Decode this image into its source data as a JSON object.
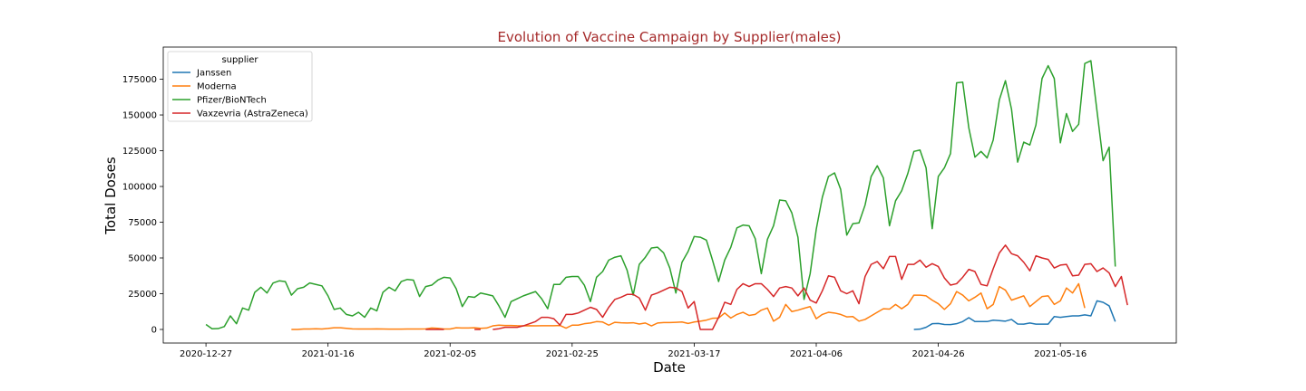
{
  "chart_data": {
    "type": "line",
    "title": "Evolution of Vaccine Campaign by Supplier(males)",
    "title_color": "#a52a2a",
    "xlabel": "Date",
    "ylabel": "Total Doses",
    "xlim": [
      "2020-12-20",
      "2021-06-04"
    ],
    "ylim": [
      -9500,
      197500
    ],
    "x_ticks": [
      "2020-12-27",
      "2021-01-16",
      "2021-02-05",
      "2021-02-25",
      "2021-03-17",
      "2021-04-06",
      "2021-04-26",
      "2021-05-16"
    ],
    "y_ticks": [
      0,
      25000,
      50000,
      75000,
      100000,
      125000,
      150000,
      175000
    ],
    "y_tick_labels": [
      "0",
      "25000",
      "50000",
      "75000",
      "100000",
      "125000",
      "150000",
      "175000"
    ],
    "legend_title": "supplier",
    "legend_position": "top-left",
    "grid": false,
    "series": [
      {
        "name": "Janssen",
        "color": "#1f77b4",
        "start": "2021-04-22",
        "values": [
          0,
          200,
          1500,
          4000,
          4200,
          3500,
          3400,
          4000,
          5500,
          8200,
          5500,
          5500,
          5500,
          6500,
          6200,
          5800,
          7000,
          3800,
          3700,
          4500,
          3700,
          3700,
          3700,
          9000,
          8500,
          9000,
          9500,
          9500,
          10200,
          9500,
          20000,
          19000,
          16500,
          5500
        ]
      },
      {
        "name": "Moderna",
        "color": "#ff7f0e",
        "start": "2021-01-10",
        "values": [
          0,
          0,
          300,
          300,
          500,
          300,
          700,
          1200,
          1200,
          800,
          400,
          300,
          300,
          300,
          400,
          300,
          200,
          200,
          200,
          300,
          300,
          300,
          400,
          1000,
          800,
          300,
          300,
          1200,
          1000,
          1000,
          1200,
          800,
          1000,
          2500,
          3000,
          2800,
          2800,
          2600,
          2500,
          2600,
          2500,
          2600,
          2600,
          2600,
          2800,
          900,
          3000,
          3000,
          4000,
          4500,
          5500,
          5200,
          3000,
          5000,
          4700,
          4500,
          4700,
          3800,
          4500,
          2500,
          4500,
          4800,
          4800,
          5000,
          5200,
          4200,
          5200,
          5800,
          6500,
          7800,
          8000,
          11500,
          8000,
          10500,
          12000,
          9800,
          10500,
          13500,
          15000,
          5800,
          8500,
          17500,
          12500,
          13500,
          14800,
          16000,
          7500,
          10500,
          12000,
          11500,
          10500,
          8800,
          9000,
          5800,
          7000,
          9500,
          12000,
          14500,
          14200,
          17500,
          14500,
          17500,
          24000,
          24000,
          23500,
          20500,
          18000,
          14000,
          18000,
          26500,
          24000,
          20000,
          22500,
          25500,
          14500,
          17500,
          30000,
          27500,
          20500,
          22000,
          23500,
          16000,
          19500,
          23000,
          23500,
          17500,
          20000,
          29000,
          25500,
          32000,
          15000
        ]
      },
      {
        "name": "Pfizer/BioNTech",
        "color": "#2ca02c",
        "start": "2020-12-27",
        "values": [
          3500,
          500,
          600,
          2000,
          9500,
          4000,
          15000,
          13500,
          26000,
          29500,
          25500,
          32500,
          34000,
          33500,
          24000,
          28500,
          29500,
          32500,
          31500,
          30500,
          23500,
          14000,
          15000,
          10500,
          9500,
          12000,
          8500,
          15000,
          13000,
          26000,
          29500,
          27000,
          33500,
          35000,
          34500,
          23000,
          30000,
          31000,
          34500,
          36500,
          36000,
          28500,
          16000,
          23000,
          22500,
          25500,
          24500,
          23500,
          16500,
          8500,
          19500,
          21500,
          23500,
          25000,
          26500,
          21500,
          14500,
          31500,
          31500,
          36500,
          37000,
          37000,
          31000,
          19500,
          36500,
          40500,
          48500,
          50500,
          51500,
          41500,
          24000,
          45500,
          50500,
          57000,
          57500,
          53500,
          43000,
          25500,
          47000,
          54500,
          65000,
          64500,
          62500,
          48500,
          33500,
          48500,
          57500,
          71000,
          73000,
          72500,
          63500,
          39000,
          63000,
          72500,
          90500,
          90000,
          81500,
          64500,
          21000,
          39000,
          70000,
          92500,
          107000,
          109500,
          98000,
          66000,
          74000,
          74500,
          87000,
          107000,
          114500,
          106000,
          72500,
          90000,
          97000,
          109000,
          124500,
          125500,
          113000,
          70500,
          107000,
          113000,
          123000,
          172500,
          173000,
          141000,
          120500,
          124500,
          120000,
          132500,
          160500,
          174000,
          154000,
          117000,
          131000,
          129000,
          143000,
          175500,
          184500,
          175500,
          130500,
          151000,
          138500,
          143500,
          186000,
          188000,
          153000,
          118000,
          127500,
          44000
        ]
      },
      {
        "name": "Vaxzevria (AstraZeneca)",
        "color": "#d62728",
        "start": "2021-02-01",
        "values": [
          0,
          0,
          0,
          0,
          null,
          null,
          null,
          null,
          0,
          0,
          null,
          0,
          500,
          1500,
          1500,
          1500,
          2500,
          4000,
          5500,
          8500,
          8500,
          7500,
          3000,
          10500,
          10500,
          11500,
          13500,
          15500,
          14000,
          8500,
          15500,
          21000,
          22500,
          24500,
          24500,
          22000,
          13500,
          24000,
          25500,
          27500,
          29500,
          29000,
          26500,
          15000,
          19500,
          0,
          0,
          0,
          8500,
          19000,
          17500,
          28000,
          32000,
          30000,
          32000,
          32000,
          28000,
          23000,
          29000,
          30000,
          29000,
          23500,
          29000,
          20500,
          18500,
          27000,
          37500,
          36500,
          27000,
          25000,
          27000,
          18000,
          37000,
          45500,
          47500,
          42500,
          51000,
          51000,
          35000,
          45500,
          45500,
          48500,
          43500,
          46000,
          44000,
          36000,
          31000,
          32000,
          36500,
          42000,
          40500,
          31500,
          30500,
          42500,
          53500,
          59000,
          53000,
          51500,
          47000,
          41000,
          51500,
          50000,
          49000,
          43000,
          45000,
          45500,
          37500,
          38000,
          45500,
          46000,
          40500,
          43000,
          39500,
          30000,
          37000,
          17000
        ]
      }
    ]
  }
}
